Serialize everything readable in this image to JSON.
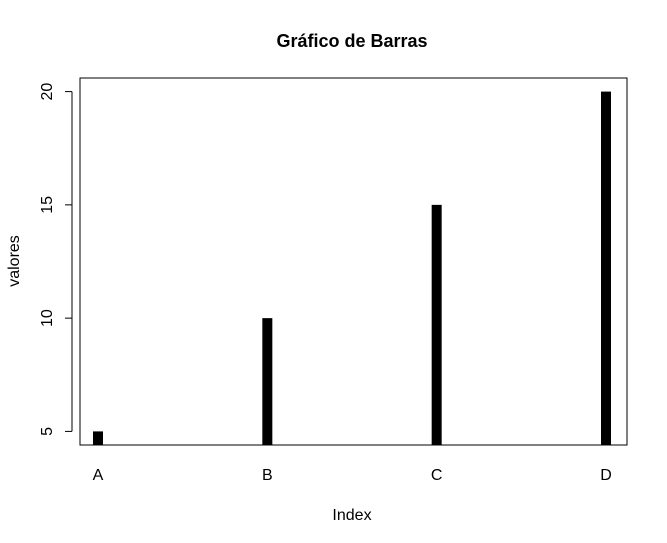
{
  "chart_data": {
    "type": "bar",
    "title": "Gráfico de Barras",
    "xlabel": "Index",
    "ylabel": "valores",
    "categories": [
      "A",
      "B",
      "C",
      "D"
    ],
    "values": [
      5,
      10,
      15,
      20
    ],
    "ylim": [
      4.4,
      20.6
    ],
    "yticks": [
      "5",
      "10",
      "15",
      "20"
    ],
    "grid": false,
    "bar_color": "#000000"
  }
}
